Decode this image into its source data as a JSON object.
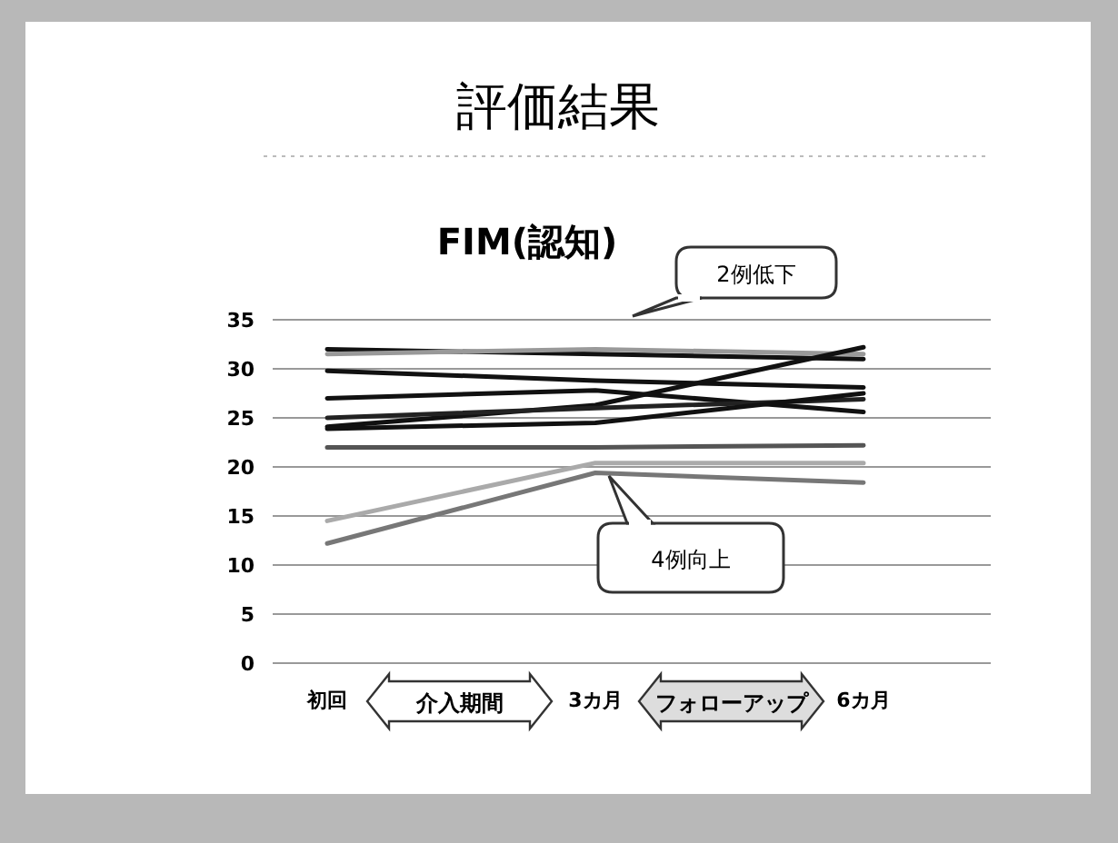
{
  "chart_data": {
    "type": "line",
    "title": "評価結果",
    "subtitle": "FIM(認知)",
    "categories": [
      "初回",
      "3カ月",
      "6カ月"
    ],
    "ylim": [
      0,
      35
    ],
    "yticks": [
      0,
      5,
      10,
      15,
      20,
      25,
      30,
      35
    ],
    "grid": "y",
    "marker": "none",
    "line_style": "solid",
    "series": [
      {
        "color": "#111111",
        "values": [
          32,
          31.5,
          31
        ]
      },
      {
        "color": "#999999",
        "values": [
          31.5,
          32,
          31.5
        ]
      },
      {
        "color": "#111111",
        "values": [
          29.8,
          28.8,
          28.1
        ]
      },
      {
        "color": "#111111",
        "values": [
          24.1,
          26.3,
          32.2
        ]
      },
      {
        "color": "#111111",
        "values": [
          27,
          27.8,
          25.6
        ]
      },
      {
        "color": "#222222",
        "values": [
          25,
          26,
          26.9
        ]
      },
      {
        "color": "#111111",
        "values": [
          23.9,
          24.5,
          27.5
        ]
      },
      {
        "color": "#555555",
        "values": [
          22,
          22,
          22.2
        ]
      },
      {
        "color": "#aaaaaa",
        "values": [
          14.5,
          20.4,
          20.4
        ]
      },
      {
        "color": "#777777",
        "values": [
          12.2,
          19.4,
          18.4
        ]
      }
    ],
    "annotations": [
      "2例低下",
      "4例向上",
      "介入期間",
      "フォローアップ"
    ]
  }
}
